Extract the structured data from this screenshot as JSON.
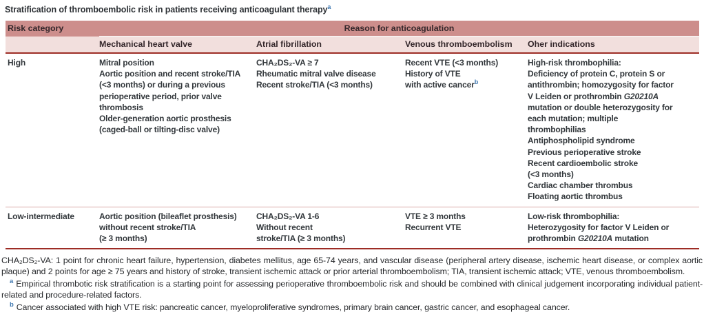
{
  "title": "Stratification of thromboembolic risk in patients receiving anticoagulant therapy^a^",
  "table": {
    "header": {
      "risk_category": "Risk category",
      "reason_group": "Reason for anticoagulation",
      "columns": [
        "Mechanical heart valve",
        "Atrial fibrillation",
        "Venous thromboembolism",
        "Oher indications"
      ]
    },
    "rows": [
      {
        "risk_category": "High",
        "cells": [
          [
            "Mitral position",
            "Aortic position and recent stroke/TIA",
            "(<3 months) or during a previous",
            "perioperative period, prior valve",
            "thrombosis",
            "Older-generation aortic prosthesis",
            "(caged-ball or tilting-disc valve)"
          ],
          [
            "CHA₂DS₂-VA ≥ 7",
            "Rheumatic mitral valve disease",
            "Recent stroke/TIA (<3 months)"
          ],
          [
            "Recent VTE (<3 months)",
            "History of VTE",
            "with active cancer^b^"
          ],
          [
            "High-risk thrombophilia:",
            "Deficiency of protein C, protein S or",
            "antithrombin; homozygosity for factor",
            "V Leiden or prothrombin *G20210A*",
            "mutation or double heterozygosity for",
            "each mutation; multiple",
            "thrombophilias",
            "Antiphospholipid syndrome",
            "Previous perioperative stroke",
            "Recent cardioembolic stroke",
            "(<3 months)",
            "Cardiac chamber thrombus",
            "Floating aortic thrombus"
          ]
        ]
      },
      {
        "risk_category": "Low-intermediate",
        "cells": [
          [
            "Aortic position (bileaflet prosthesis)",
            "without recent stroke/TIA",
            "(≥ 3 months)"
          ],
          [
            "CHA₂DS₂-VA 1-6",
            "Without recent",
            "stroke/TIA (≥ 3 months)"
          ],
          [
            "VTE ≥ 3 months",
            "Recurrent VTE"
          ],
          [
            "Low-risk thrombophilia:",
            "Heterozygosity for factor V Leiden or",
            "prothrombin *G20210A* mutation"
          ]
        ]
      }
    ]
  },
  "footnotes": {
    "abbreviations": "CHA₂DS₂-VA: 1 point for chronic heart failure, hypertension, diabetes mellitus, age 65-74 years, and vascular disease (peripheral artery disease, ischemic heart disease, or complex aortic plaque) and 2 points for age ≥ 75 years and history of stroke, transient ischemic attack or prior arterial thromboembolism; TIA, transient ischemic attack; VTE, venous thromboembolism.",
    "notes": [
      {
        "marker": "a",
        "text": "Empirical thrombotic risk stratification is a starting point for assessing perioperative thromboembolic risk and should be combined with clinical judgement incorporating individual patient-related and procedure-related factors."
      },
      {
        "marker": "b",
        "text": "Cancer associated with high VTE risk: pancreatic cancer, myeloproliferative syndromes, primary brain cancer, gastric cancer, and esophageal cancer."
      }
    ]
  },
  "colors": {
    "header_band_dark": "#cd8e8c",
    "header_band_light": "#f2dfdd",
    "rule_dark_red": "#9d2c25",
    "rule_pink": "#d8a7a5",
    "footnote_marker_blue": "#3c76b0",
    "table_text": "#33383c"
  }
}
